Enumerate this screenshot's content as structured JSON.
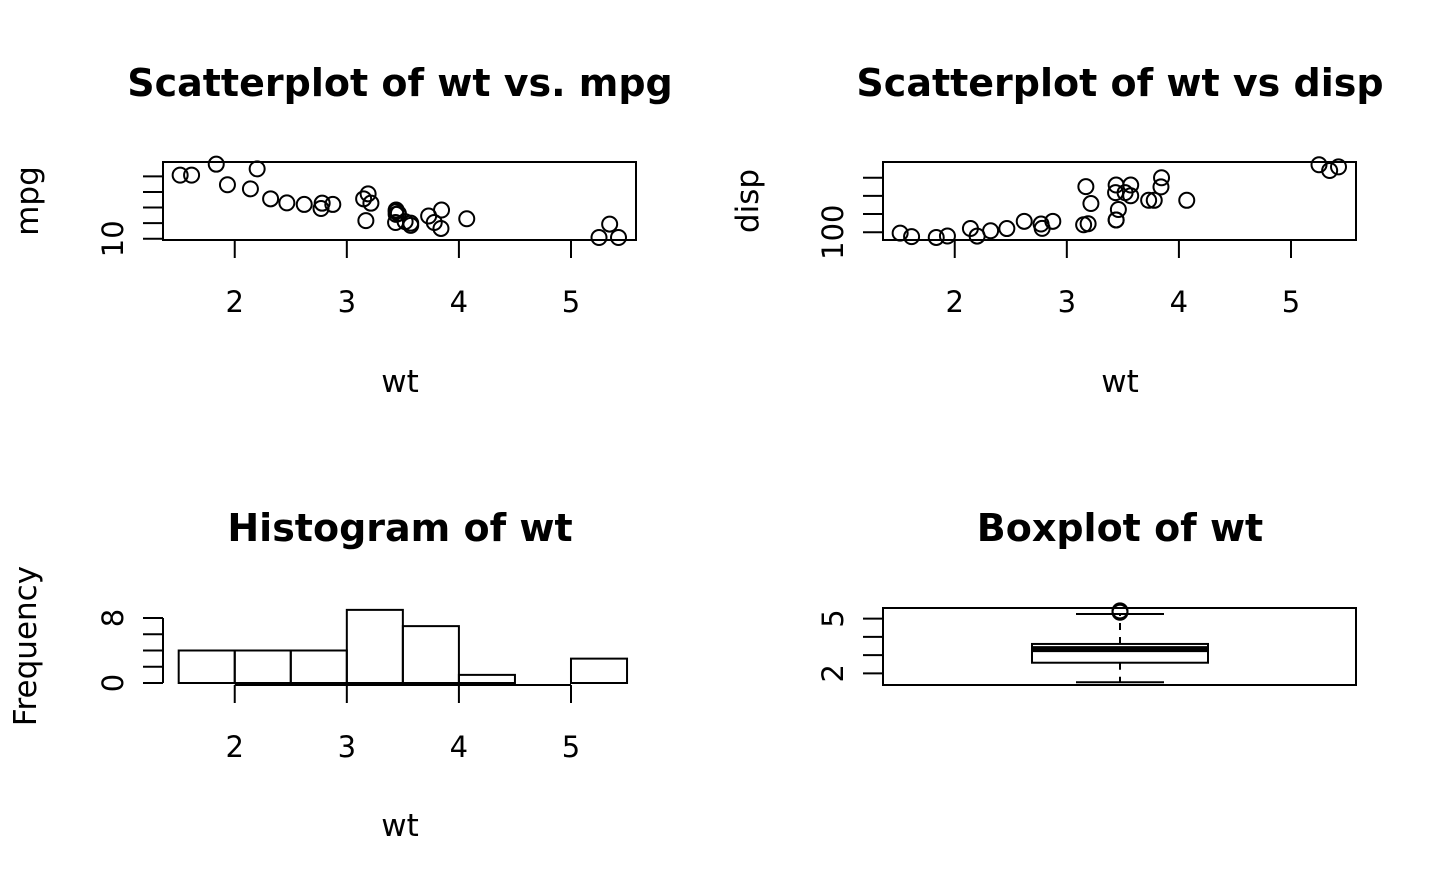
{
  "chart_data": [
    {
      "type": "scatter",
      "title": "Scatterplot of wt vs. mpg",
      "xlabel": "wt",
      "ylabel": "mpg",
      "xlim": [
        1.36,
        5.58
      ],
      "ylim": [
        9.6,
        34.6
      ],
      "xticks": [
        "2",
        "3",
        "4",
        "5"
      ],
      "xtick_values": [
        2,
        3,
        4,
        5
      ],
      "yticks": [
        "10",
        "15",
        "20",
        "25",
        "30"
      ],
      "ytick_values": [
        10,
        15,
        20,
        25,
        30
      ],
      "ytick_labels_shown": [
        "10"
      ],
      "points": [
        [
          1.513,
          30.4
        ],
        [
          1.615,
          30.4
        ],
        [
          1.835,
          33.9
        ],
        [
          1.935,
          27.3
        ],
        [
          2.14,
          26.0
        ],
        [
          2.2,
          32.4
        ],
        [
          2.32,
          22.8
        ],
        [
          2.465,
          21.5
        ],
        [
          2.62,
          21.0
        ],
        [
          2.77,
          19.7
        ],
        [
          2.78,
          21.4
        ],
        [
          2.875,
          21.0
        ],
        [
          3.15,
          22.8
        ],
        [
          3.17,
          15.8
        ],
        [
          3.19,
          24.4
        ],
        [
          3.215,
          21.4
        ],
        [
          3.435,
          15.2
        ],
        [
          3.44,
          18.7
        ],
        [
          3.44,
          19.2
        ],
        [
          3.44,
          17.8
        ],
        [
          3.46,
          18.1
        ],
        [
          3.52,
          15.5
        ],
        [
          3.57,
          14.3
        ],
        [
          3.57,
          15.0
        ],
        [
          3.73,
          17.3
        ],
        [
          3.78,
          15.2
        ],
        [
          3.84,
          13.3
        ],
        [
          3.845,
          19.2
        ],
        [
          4.07,
          16.4
        ],
        [
          5.25,
          10.4
        ],
        [
          5.345,
          14.7
        ],
        [
          5.424,
          10.4
        ]
      ]
    },
    {
      "type": "scatter",
      "title": "Scatterplot of wt vs disp",
      "xlabel": "wt",
      "ylabel": "disp",
      "xlim": [
        1.36,
        5.58
      ],
      "ylim": [
        57,
        487
      ],
      "xticks": [
        "2",
        "3",
        "4",
        "5"
      ],
      "xtick_values": [
        2,
        3,
        4,
        5
      ],
      "yticks": [
        "100",
        "200",
        "300",
        "400"
      ],
      "ytick_values": [
        100,
        200,
        300,
        400
      ],
      "ytick_labels_shown": [
        "100"
      ],
      "points": [
        [
          1.513,
          95.1
        ],
        [
          1.615,
          75.7
        ],
        [
          1.835,
          71.1
        ],
        [
          1.935,
          79.0
        ],
        [
          2.14,
          120.3
        ],
        [
          2.2,
          78.7
        ],
        [
          2.32,
          108.0
        ],
        [
          2.465,
          120.1
        ],
        [
          2.62,
          160.0
        ],
        [
          2.77,
          145.0
        ],
        [
          2.78,
          121.0
        ],
        [
          2.875,
          160.0
        ],
        [
          3.15,
          140.8
        ],
        [
          3.17,
          351.0
        ],
        [
          3.19,
          146.7
        ],
        [
          3.215,
          258.0
        ],
        [
          3.435,
          318.0
        ],
        [
          3.44,
          360.0
        ],
        [
          3.44,
          167.6
        ],
        [
          3.44,
          167.6
        ],
        [
          3.46,
          225.0
        ],
        [
          3.52,
          318.0
        ],
        [
          3.57,
          360.0
        ],
        [
          3.57,
          301.0
        ],
        [
          3.73,
          275.8
        ],
        [
          3.78,
          275.8
        ],
        [
          3.84,
          350.0
        ],
        [
          3.845,
          400.0
        ],
        [
          4.07,
          275.8
        ],
        [
          5.25,
          472.0
        ],
        [
          5.345,
          440.0
        ],
        [
          5.424,
          460.0
        ]
      ]
    },
    {
      "type": "bar",
      "title": "Histogram of wt",
      "xlabel": "wt",
      "ylabel": "Frequency",
      "xlim": [
        1.36,
        5.58
      ],
      "ylim": [
        0,
        8
      ],
      "xticks": [
        "2",
        "3",
        "4",
        "5"
      ],
      "xtick_values": [
        2,
        3,
        4,
        5
      ],
      "yticks": [
        "0",
        "2",
        "4",
        "6",
        "8"
      ],
      "ytick_values": [
        0,
        2,
        4,
        6,
        8
      ],
      "ytick_labels_shown": [
        "0",
        "8"
      ],
      "bins": [
        {
          "from": 1.5,
          "to": 2.0,
          "count": 4
        },
        {
          "from": 2.0,
          "to": 2.5,
          "count": 4
        },
        {
          "from": 2.5,
          "to": 3.0,
          "count": 4
        },
        {
          "from": 3.0,
          "to": 3.5,
          "count": 9
        },
        {
          "from": 3.5,
          "to": 4.0,
          "count": 7
        },
        {
          "from": 4.0,
          "to": 4.5,
          "count": 1
        },
        {
          "from": 4.5,
          "to": 5.0,
          "count": 0
        },
        {
          "from": 5.0,
          "to": 5.5,
          "count": 3
        }
      ]
    },
    {
      "type": "box",
      "title": "Boxplot of wt",
      "xlabel": "",
      "ylabel": "",
      "ylim": [
        1.36,
        5.58
      ],
      "yticks": [
        "2",
        "3",
        "4",
        "5"
      ],
      "ytick_values": [
        2,
        3,
        4,
        5
      ],
      "ytick_labels_shown": [
        "2",
        "5"
      ],
      "whisker_low": 1.513,
      "q1": 2.581,
      "median": 3.325,
      "q3": 3.61,
      "whisker_high": 5.25,
      "outliers": [
        5.345,
        5.424
      ]
    }
  ]
}
